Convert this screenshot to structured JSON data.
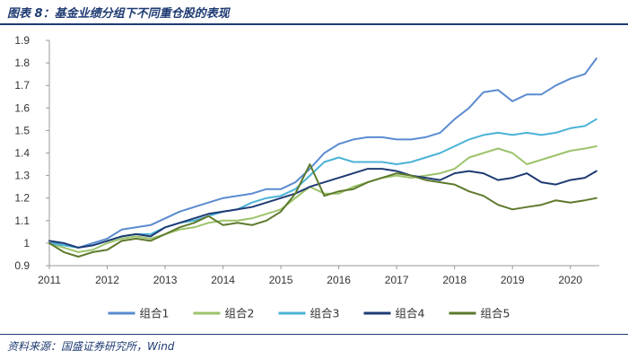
{
  "header": {
    "title": "图表 8：基金业绩分组下不同重仓股的表现"
  },
  "footer": {
    "source": "资料来源：国盛证券研究所，Wind"
  },
  "colors": {
    "series1": "#5b8bd0",
    "series2": "#9dc36b",
    "series3": "#4bb3d6",
    "series4": "#1f3b73",
    "series5": "#5e7a2c",
    "axis": "#999999",
    "brand": "#1f3b73"
  },
  "chart_data": {
    "type": "line",
    "title": "",
    "xlabel": "",
    "ylabel": "",
    "xlim": [
      2011.0,
      2020.5
    ],
    "ylim": [
      0.9,
      1.9
    ],
    "yticks": [
      "0.9",
      "1",
      "1.1",
      "1.2",
      "1.3",
      "1.4",
      "1.5",
      "1.6",
      "1.7",
      "1.8",
      "1.9"
    ],
    "xticks": [
      "2011",
      "2012",
      "2013",
      "2014",
      "2015",
      "2016",
      "2017",
      "2018",
      "2019",
      "2020"
    ],
    "grid": false,
    "legend_position": "bottom",
    "series": [
      {
        "name": "组合1",
        "color": "#5b8bd0",
        "x": [
          2011.0,
          2011.25,
          2011.5,
          2011.75,
          2012.0,
          2012.25,
          2012.5,
          2012.75,
          2013.0,
          2013.25,
          2013.5,
          2013.75,
          2014.0,
          2014.25,
          2014.5,
          2014.75,
          2015.0,
          2015.25,
          2015.5,
          2015.75,
          2016.0,
          2016.25,
          2016.5,
          2016.75,
          2017.0,
          2017.25,
          2017.5,
          2017.75,
          2018.0,
          2018.25,
          2018.5,
          2018.75,
          2019.0,
          2019.25,
          2019.5,
          2019.75,
          2020.0,
          2020.25,
          2020.45
        ],
        "y": [
          1.0,
          1.0,
          0.98,
          1.0,
          1.02,
          1.06,
          1.07,
          1.08,
          1.11,
          1.14,
          1.16,
          1.18,
          1.2,
          1.21,
          1.22,
          1.24,
          1.24,
          1.27,
          1.33,
          1.4,
          1.44,
          1.46,
          1.47,
          1.47,
          1.46,
          1.46,
          1.47,
          1.49,
          1.55,
          1.6,
          1.67,
          1.68,
          1.63,
          1.66,
          1.66,
          1.7,
          1.73,
          1.75,
          1.82
        ]
      },
      {
        "name": "组合2",
        "color": "#9dc36b",
        "x": [
          2011.0,
          2011.25,
          2011.5,
          2011.75,
          2012.0,
          2012.25,
          2012.5,
          2012.75,
          2013.0,
          2013.25,
          2013.5,
          2013.75,
          2014.0,
          2014.25,
          2014.5,
          2014.75,
          2015.0,
          2015.25,
          2015.5,
          2015.75,
          2016.0,
          2016.25,
          2016.5,
          2016.75,
          2017.0,
          2017.25,
          2017.5,
          2017.75,
          2018.0,
          2018.25,
          2018.5,
          2018.75,
          2019.0,
          2019.25,
          2019.5,
          2019.75,
          2020.0,
          2020.25,
          2020.45
        ],
        "y": [
          1.0,
          0.98,
          0.96,
          0.97,
          1.0,
          1.02,
          1.03,
          1.02,
          1.04,
          1.06,
          1.07,
          1.09,
          1.1,
          1.1,
          1.11,
          1.13,
          1.15,
          1.2,
          1.25,
          1.22,
          1.22,
          1.25,
          1.27,
          1.29,
          1.3,
          1.29,
          1.3,
          1.31,
          1.33,
          1.38,
          1.4,
          1.42,
          1.4,
          1.35,
          1.37,
          1.39,
          1.41,
          1.42,
          1.43
        ]
      },
      {
        "name": "组合3",
        "color": "#4bb3d6",
        "x": [
          2011.0,
          2011.25,
          2011.5,
          2011.75,
          2012.0,
          2012.25,
          2012.5,
          2012.75,
          2013.0,
          2013.25,
          2013.5,
          2013.75,
          2014.0,
          2014.25,
          2014.5,
          2014.75,
          2015.0,
          2015.25,
          2015.5,
          2015.75,
          2016.0,
          2016.25,
          2016.5,
          2016.75,
          2017.0,
          2017.25,
          2017.5,
          2017.75,
          2018.0,
          2018.25,
          2018.5,
          2018.75,
          2019.0,
          2019.25,
          2019.5,
          2019.75,
          2020.0,
          2020.25,
          2020.45
        ],
        "y": [
          1.0,
          0.99,
          0.98,
          0.99,
          1.01,
          1.03,
          1.04,
          1.04,
          1.07,
          1.09,
          1.1,
          1.12,
          1.14,
          1.15,
          1.18,
          1.2,
          1.21,
          1.24,
          1.3,
          1.36,
          1.38,
          1.36,
          1.36,
          1.36,
          1.35,
          1.36,
          1.38,
          1.4,
          1.43,
          1.46,
          1.48,
          1.49,
          1.48,
          1.49,
          1.48,
          1.49,
          1.51,
          1.52,
          1.55
        ]
      },
      {
        "name": "组合4",
        "color": "#1f3b73",
        "x": [
          2011.0,
          2011.25,
          2011.5,
          2011.75,
          2012.0,
          2012.25,
          2012.5,
          2012.75,
          2013.0,
          2013.25,
          2013.5,
          2013.75,
          2014.0,
          2014.25,
          2014.5,
          2014.75,
          2015.0,
          2015.25,
          2015.5,
          2015.75,
          2016.0,
          2016.25,
          2016.5,
          2016.75,
          2017.0,
          2017.25,
          2017.5,
          2017.75,
          2018.0,
          2018.25,
          2018.5,
          2018.75,
          2019.0,
          2019.25,
          2019.5,
          2019.75,
          2020.0,
          2020.25,
          2020.45
        ],
        "y": [
          1.01,
          1.0,
          0.98,
          0.99,
          1.01,
          1.03,
          1.04,
          1.03,
          1.07,
          1.09,
          1.11,
          1.13,
          1.14,
          1.15,
          1.16,
          1.18,
          1.2,
          1.22,
          1.25,
          1.27,
          1.29,
          1.31,
          1.33,
          1.33,
          1.32,
          1.3,
          1.29,
          1.28,
          1.31,
          1.32,
          1.31,
          1.28,
          1.29,
          1.31,
          1.27,
          1.26,
          1.28,
          1.29,
          1.32
        ]
      },
      {
        "name": "组合5",
        "color": "#5e7a2c",
        "x": [
          2011.0,
          2011.25,
          2011.5,
          2011.75,
          2012.0,
          2012.25,
          2012.5,
          2012.75,
          2013.0,
          2013.25,
          2013.5,
          2013.75,
          2014.0,
          2014.25,
          2014.5,
          2014.75,
          2015.0,
          2015.25,
          2015.5,
          2015.75,
          2016.0,
          2016.25,
          2016.5,
          2016.75,
          2017.0,
          2017.25,
          2017.5,
          2017.75,
          2018.0,
          2018.25,
          2018.5,
          2018.75,
          2019.0,
          2019.25,
          2019.5,
          2019.75,
          2020.0,
          2020.25,
          2020.45
        ],
        "y": [
          1.0,
          0.96,
          0.94,
          0.96,
          0.97,
          1.01,
          1.02,
          1.01,
          1.04,
          1.07,
          1.09,
          1.12,
          1.08,
          1.09,
          1.08,
          1.1,
          1.14,
          1.22,
          1.35,
          1.21,
          1.23,
          1.24,
          1.27,
          1.29,
          1.31,
          1.3,
          1.28,
          1.27,
          1.26,
          1.23,
          1.21,
          1.17,
          1.15,
          1.16,
          1.17,
          1.19,
          1.18,
          1.19,
          1.2
        ]
      }
    ]
  }
}
